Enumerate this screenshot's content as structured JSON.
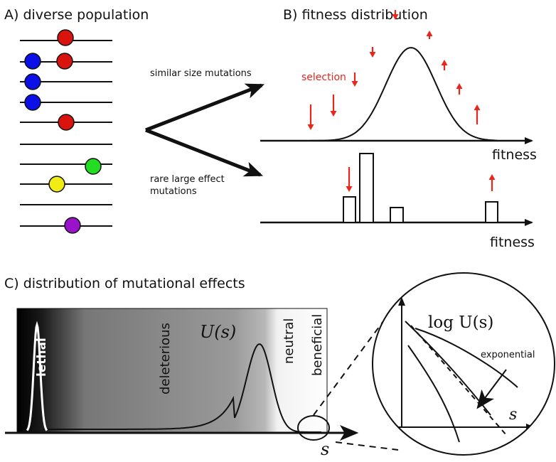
{
  "panel_a": {
    "title": "A) diverse population",
    "dot_colors": {
      "red": "#d9140f",
      "blue": "#0a10e6",
      "green": "#22dd22",
      "yellow": "#f2ec14",
      "purple": "#9a12c9"
    }
  },
  "arrows": {
    "upper_label": "similar size mutations",
    "lower_label_line1": "rare large effect",
    "lower_label_line2": "mutations"
  },
  "panel_b": {
    "title": "B) fitness distribution",
    "selection_label": "selection",
    "axis_label_top": "fitness",
    "axis_label_bottom": "fitness",
    "arrow_color": "#e8261c"
  },
  "panel_c": {
    "title": "C) distribution of mutational effects",
    "region_lethal": "lethal",
    "region_deleterious": "deleterious",
    "region_neutral": "neutral",
    "region_beneficial": "beneficial",
    "curve_label": "U(s)",
    "axis_label": "s",
    "zoom_title": "log U(s)",
    "zoom_axis_label": "s",
    "zoom_annotation": "exponential"
  }
}
